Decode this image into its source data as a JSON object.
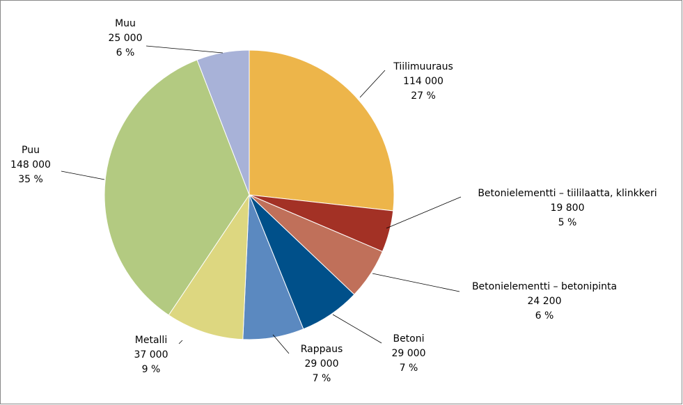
{
  "chart_data": {
    "type": "pie",
    "categories": [
      "Tiilimuuraus",
      "Betonielementti – tiililaatta, klinkkeri",
      "Betonielementti – betonipinta",
      "Betoni",
      "Rappaus",
      "Metalli",
      "Puu",
      "Muu"
    ],
    "values": [
      114000,
      19800,
      24200,
      29000,
      29000,
      37000,
      148000,
      25000
    ],
    "value_labels": [
      "114 000",
      "19 800",
      "24 200",
      "29 000",
      "29 000",
      "37 000",
      "148 000",
      "25 000"
    ],
    "percents": [
      27,
      5,
      6,
      7,
      7,
      9,
      35,
      6
    ],
    "percent_labels": [
      "27 %",
      "5 %",
      "6 %",
      "7 %",
      "7 %",
      "9 %",
      "35 %",
      "6 %"
    ],
    "colors": [
      "#edb54a",
      "#a33125",
      "#c0705a",
      "#00508a",
      "#5b89c0",
      "#ddd780",
      "#b3ca81",
      "#a8b2d8"
    ]
  }
}
